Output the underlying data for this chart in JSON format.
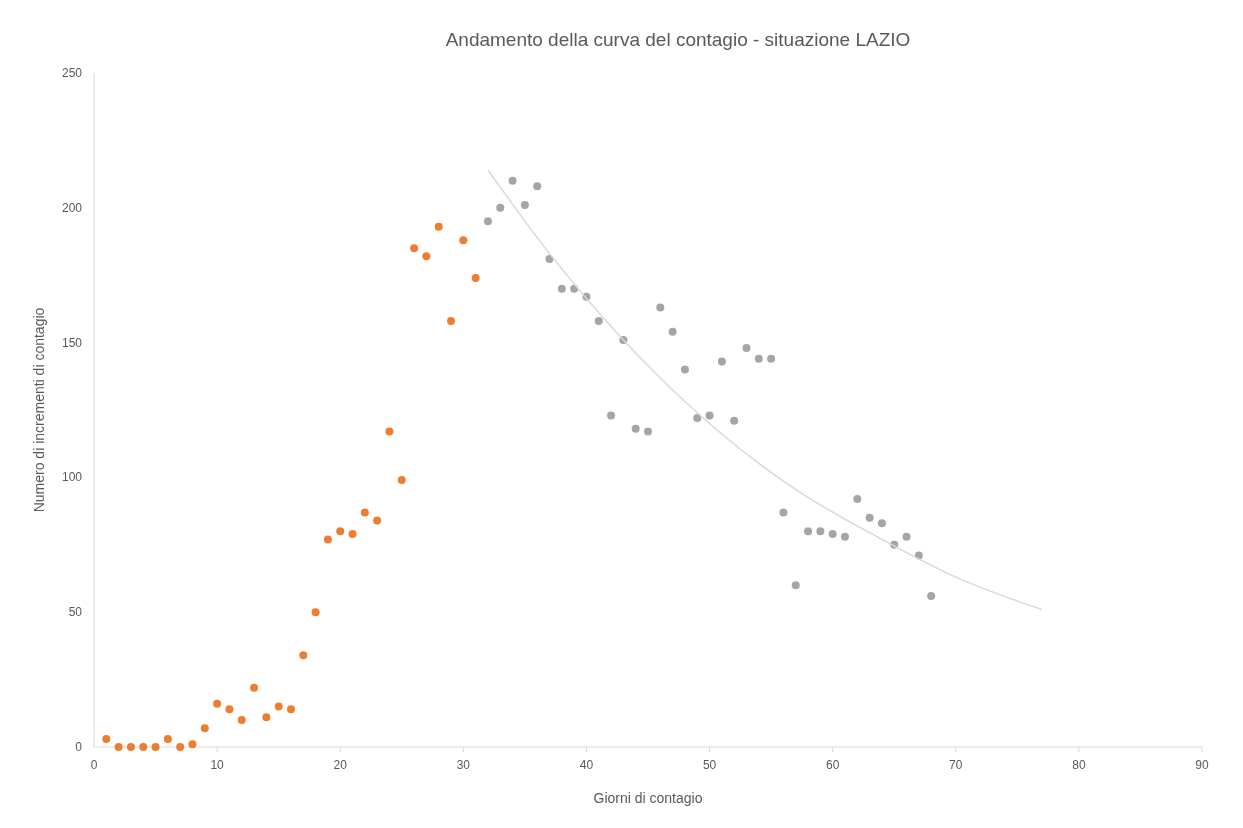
{
  "chart_data": {
    "type": "scatter",
    "title": "Andamento della curva del contagio - situazione LAZIO",
    "xlabel": "Giorni di contagio",
    "ylabel": "Numero di incrementi di contagio",
    "xlim": [
      0,
      90
    ],
    "xticks": [
      0,
      10,
      20,
      30,
      40,
      50,
      60,
      70,
      80,
      90
    ],
    "ylim": [
      0,
      250
    ],
    "yticks": [
      0,
      50,
      100,
      150,
      200,
      250
    ],
    "grid": false,
    "marker": "circle",
    "series": [
      {
        "color": "#ed7d31",
        "x": [
          1,
          2,
          3,
          4,
          5,
          6,
          7,
          8,
          9,
          10,
          11,
          12,
          13,
          14,
          15,
          16,
          17,
          18,
          19,
          20,
          21,
          22,
          23,
          24,
          25,
          26,
          27,
          28,
          29,
          30,
          31
        ],
        "values": [
          3,
          0,
          0,
          0,
          0,
          3,
          0,
          1,
          7,
          16,
          14,
          10,
          22,
          11,
          15,
          14,
          34,
          50,
          77,
          80,
          79,
          87,
          84,
          117,
          99,
          185,
          182,
          193,
          158,
          188,
          174
        ]
      },
      {
        "color": "#a5a5a5",
        "x": [
          32,
          33,
          34,
          35,
          36,
          37,
          38,
          39,
          40,
          41,
          42,
          43,
          44,
          45,
          46,
          47,
          48,
          49,
          50,
          51,
          52,
          53,
          54,
          55,
          56,
          57,
          58,
          59,
          60,
          61,
          62,
          63,
          64,
          65,
          66,
          67,
          68
        ],
        "values": [
          195,
          200,
          210,
          201,
          208,
          181,
          170,
          170,
          167,
          158,
          123,
          151,
          118,
          117,
          163,
          154,
          140,
          122,
          123,
          143,
          121,
          148,
          144,
          144,
          87,
          60,
          80,
          80,
          79,
          78,
          92,
          85,
          83,
          75,
          78,
          71,
          56
        ]
      },
      {
        "type": "line",
        "color": "#d9d9d9",
        "marker": "none",
        "x": [
          32,
          37,
          43,
          49,
          56.5,
          64,
          70,
          77
        ],
        "values": [
          214,
          183,
          151,
          124,
          97,
          77,
          63,
          51
        ]
      }
    ]
  }
}
